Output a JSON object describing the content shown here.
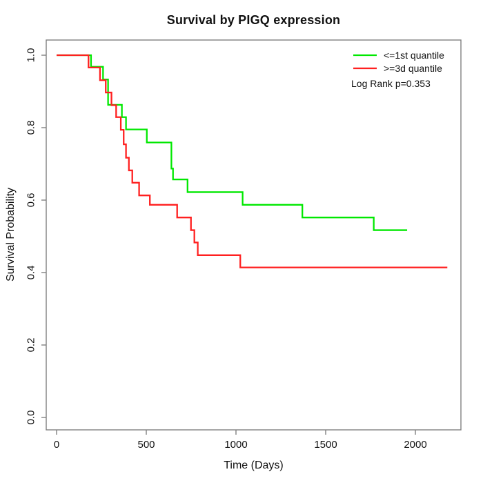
{
  "chart_data": {
    "type": "line",
    "subtype": "kaplan-meier-survival-steps",
    "title": "Survival by PIGQ expression",
    "xlabel": "Time (Days)",
    "ylabel": "Survival Probability",
    "xlim": [
      0,
      2250
    ],
    "ylim": [
      0,
      1
    ],
    "x_ticks": [
      0,
      500,
      1000,
      1500,
      2000
    ],
    "y_ticks": [
      0,
      0.2,
      0.4,
      0.6,
      0.8,
      1
    ],
    "grid": false,
    "legend_position": "top-right-inside",
    "annotation": "Log Rank p=0.353",
    "frame_color": "#7f7f7f",
    "series": [
      {
        "name": "<=1st quantile",
        "color": "#00e800",
        "end_time": 1954,
        "points": [
          [
            0,
            1.0
          ],
          [
            192,
            0.968
          ],
          [
            259,
            0.933
          ],
          [
            287,
            0.863
          ],
          [
            364,
            0.829
          ],
          [
            387,
            0.795
          ],
          [
            503,
            0.759
          ],
          [
            640,
            0.687
          ],
          [
            649,
            0.657
          ],
          [
            730,
            0.622
          ],
          [
            1037,
            0.587
          ],
          [
            1370,
            0.552
          ],
          [
            1768,
            0.517
          ]
        ]
      },
      {
        "name": ">=3d quantile",
        "color": "#ff2020",
        "end_time": 2178,
        "points": [
          [
            0,
            1.0
          ],
          [
            178,
            0.966
          ],
          [
            242,
            0.931
          ],
          [
            274,
            0.897
          ],
          [
            306,
            0.862
          ],
          [
            332,
            0.829
          ],
          [
            358,
            0.794
          ],
          [
            374,
            0.754
          ],
          [
            387,
            0.717
          ],
          [
            403,
            0.682
          ],
          [
            422,
            0.648
          ],
          [
            460,
            0.613
          ],
          [
            520,
            0.587
          ],
          [
            672,
            0.552
          ],
          [
            749,
            0.517
          ],
          [
            768,
            0.483
          ],
          [
            787,
            0.448
          ],
          [
            1024,
            0.414
          ]
        ]
      }
    ]
  }
}
